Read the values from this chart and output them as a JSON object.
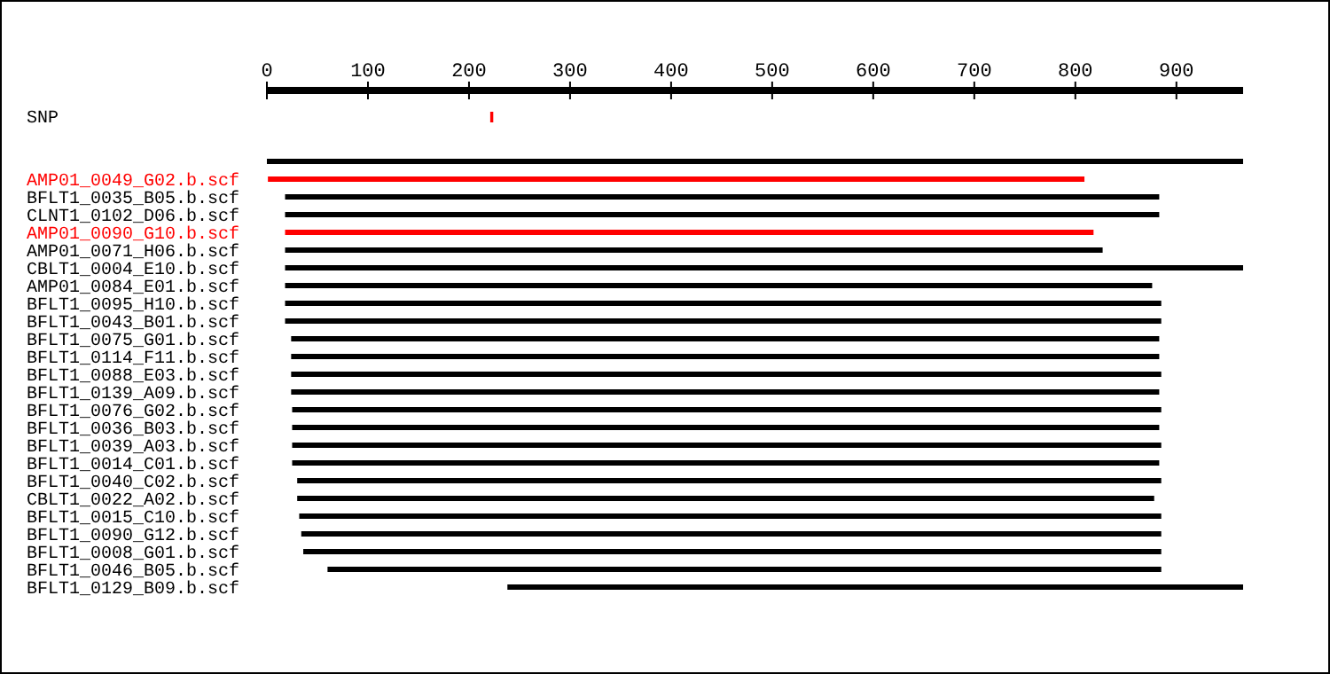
{
  "chart_data": {
    "type": "bar",
    "orientation": "horizontal",
    "categories": [
      "SNP",
      null,
      null,
      "AMP01_0049_G02.b.scf",
      "BFLT1_0035_B05.b.scf",
      "CLNT1_0102_D06.b.scf",
      "AMP01_0090_G10.b.scf",
      "AMP01_0071_H06.b.scf",
      "CBLT1_0004_E10.b.scf",
      "AMP01_0084_E01.b.scf",
      "BFLT1_0095_H10.b.scf",
      "BFLT1_0043_B01.b.scf",
      "BFLT1_0075_G01.b.scf",
      "BFLT1_0114_F11.b.scf",
      "BFLT1_0088_E03.b.scf",
      "BFLT1_0139_A09.b.scf",
      "BFLT1_0076_G02.b.scf",
      "BFLT1_0036_B03.b.scf",
      "BFLT1_0039_A03.b.scf",
      "BFLT1_0014_C01.b.scf",
      "BFLT1_0040_C02.b.scf",
      "CBLT1_0022_A02.b.scf",
      "BFLT1_0015_C10.b.scf",
      "BFLT1_0090_G12.b.scf",
      "BFLT1_0008_G01.b.scf",
      "BFLT1_0046_B05.b.scf",
      "BFLT1_0129_B09.b.scf"
    ],
    "base": [
      221,
      null,
      0,
      1,
      18,
      18,
      18,
      18,
      18,
      18,
      18,
      18,
      24,
      24,
      24,
      24,
      25,
      25,
      25,
      25,
      30,
      30,
      32,
      34,
      36,
      60,
      238
    ],
    "values": [
      3,
      null,
      966,
      808,
      865,
      865,
      800,
      809,
      948,
      858,
      867,
      867,
      859,
      859,
      861,
      859,
      860,
      858,
      860,
      858,
      855,
      848,
      853,
      851,
      849,
      825,
      728
    ],
    "colors": [
      "#ff0000",
      null,
      "#000000",
      "#ff0000",
      "#000000",
      "#000000",
      "#ff0000",
      "#000000",
      "#000000",
      "#000000",
      "#000000",
      "#000000",
      "#000000",
      "#000000",
      "#000000",
      "#000000",
      "#000000",
      "#000000",
      "#000000",
      "#000000",
      "#000000",
      "#000000",
      "#000000",
      "#000000",
      "#000000",
      "#000000",
      "#000000"
    ],
    "xlim": [
      0,
      966
    ],
    "xticks": [
      0,
      100,
      200,
      300,
      400,
      500,
      600,
      700,
      800,
      900
    ],
    "grid": false
  }
}
